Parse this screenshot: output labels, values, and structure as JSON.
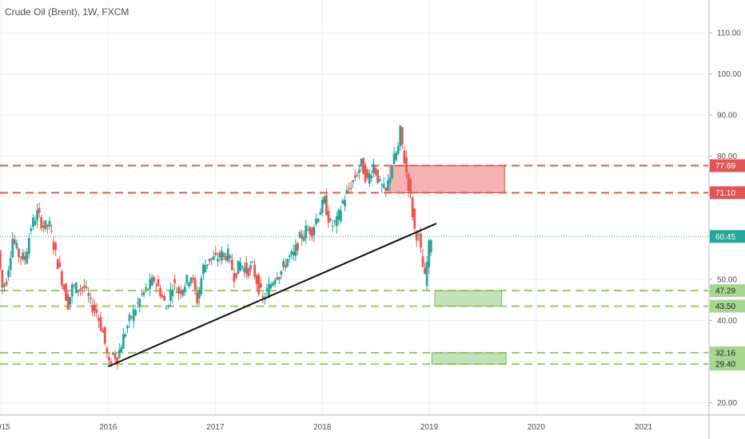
{
  "header": {
    "title": "Crude Oil (Brent), 1W, FXCM"
  },
  "chart_data": {
    "type": "candlestick",
    "instrument": "Crude Oil (Brent)",
    "interval": "1W",
    "source": "FXCM",
    "x_ticks": [
      "2015",
      "2016",
      "2017",
      "2018",
      "2019",
      "2020",
      "2021"
    ],
    "y_ticks": [
      20,
      30,
      40,
      50,
      60,
      70,
      80,
      90,
      100,
      110
    ],
    "y_tick_labels": [
      "20.00",
      "",
      "40.00",
      "50.00",
      "",
      "",
      "80.00",
      "90.00",
      "100.00",
      "110.00"
    ],
    "ylim": [
      17,
      118
    ],
    "xlim": [
      "2014-12-28",
      "2021-08-10"
    ],
    "last_price": {
      "value": 60.45,
      "label": "60.45",
      "color": "#26a69a"
    },
    "resistance_levels": [
      {
        "value": 77.69,
        "label": "77.69",
        "color": "#e05656"
      },
      {
        "value": 71.1,
        "label": "71.10",
        "color": "#e05656"
      }
    ],
    "support_levels": [
      {
        "value": 47.29,
        "label": "47.29",
        "color": "#8bc34a"
      },
      {
        "value": 43.5,
        "label": "43.50",
        "color": "#8bc34a"
      },
      {
        "value": 32.16,
        "label": "32.16",
        "color": "#8bc34a"
      },
      {
        "value": 29.4,
        "label": "29.40",
        "color": "#8bc34a"
      }
    ],
    "zones": [
      {
        "kind": "resistance",
        "from_date": "2018-08-20",
        "to_date": "2019-09-15",
        "low": 71.1,
        "high": 77.69,
        "color": "#f28b8b"
      },
      {
        "kind": "support",
        "from_date": "2019-01-20",
        "to_date": "2019-09-05",
        "low": 43.5,
        "high": 47.29,
        "color": "#b5dba5"
      },
      {
        "kind": "support",
        "from_date": "2019-01-10",
        "to_date": "2019-09-20",
        "low": 29.4,
        "high": 32.16,
        "color": "#b5dba5"
      }
    ],
    "trendline": {
      "from": {
        "date": "2016-01-01",
        "value": 28.8
      },
      "to": {
        "date": "2019-01-25",
        "value": 63.6
      },
      "color": "#111111"
    },
    "price_path": [
      [
        "2014-12-29",
        57
      ],
      [
        "2015-01-12",
        48
      ],
      [
        "2015-01-26",
        50
      ],
      [
        "2015-02-16",
        60
      ],
      [
        "2015-03-09",
        56
      ],
      [
        "2015-03-30",
        55
      ],
      [
        "2015-04-20",
        63
      ],
      [
        "2015-05-11",
        66
      ],
      [
        "2015-06-01",
        63
      ],
      [
        "2015-06-22",
        63
      ],
      [
        "2015-07-13",
        56
      ],
      [
        "2015-08-03",
        50
      ],
      [
        "2015-08-24",
        44
      ],
      [
        "2015-09-07",
        48
      ],
      [
        "2015-09-28",
        48
      ],
      [
        "2015-10-19",
        48
      ],
      [
        "2015-11-09",
        44
      ],
      [
        "2015-11-30",
        42
      ],
      [
        "2015-12-21",
        37
      ],
      [
        "2016-01-11",
        29
      ],
      [
        "2016-01-25",
        32
      ],
      [
        "2016-02-08",
        31
      ],
      [
        "2016-02-29",
        36
      ],
      [
        "2016-03-21",
        40
      ],
      [
        "2016-04-11",
        43
      ],
      [
        "2016-05-02",
        46
      ],
      [
        "2016-05-23",
        48
      ],
      [
        "2016-06-13",
        50
      ],
      [
        "2016-07-04",
        47
      ],
      [
        "2016-07-25",
        43
      ],
      [
        "2016-08-15",
        49
      ],
      [
        "2016-09-05",
        47
      ],
      [
        "2016-09-26",
        49
      ],
      [
        "2016-10-17",
        51
      ],
      [
        "2016-11-07",
        45
      ],
      [
        "2016-11-28",
        53
      ],
      [
        "2016-12-19",
        55
      ],
      [
        "2017-01-09",
        55
      ],
      [
        "2017-01-30",
        56
      ],
      [
        "2017-02-20",
        56
      ],
      [
        "2017-03-13",
        51
      ],
      [
        "2017-04-03",
        54
      ],
      [
        "2017-04-24",
        52
      ],
      [
        "2017-05-15",
        53
      ],
      [
        "2017-06-05",
        48
      ],
      [
        "2017-06-19",
        45
      ],
      [
        "2017-07-10",
        48
      ],
      [
        "2017-07-31",
        51
      ],
      [
        "2017-08-21",
        52
      ],
      [
        "2017-09-11",
        55
      ],
      [
        "2017-10-02",
        56
      ],
      [
        "2017-10-23",
        60
      ],
      [
        "2017-11-13",
        62
      ],
      [
        "2017-12-04",
        62
      ],
      [
        "2017-12-25",
        66
      ],
      [
        "2018-01-15",
        69
      ],
      [
        "2018-02-05",
        63
      ],
      [
        "2018-02-26",
        64
      ],
      [
        "2018-03-19",
        69
      ],
      [
        "2018-04-09",
        72
      ],
      [
        "2018-04-30",
        75
      ],
      [
        "2018-05-21",
        78
      ],
      [
        "2018-06-11",
        74
      ],
      [
        "2018-07-02",
        78
      ],
      [
        "2018-07-23",
        73
      ],
      [
        "2018-08-13",
        71
      ],
      [
        "2018-09-03",
        78
      ],
      [
        "2018-09-24",
        82
      ],
      [
        "2018-10-01",
        86
      ],
      [
        "2018-10-15",
        79
      ],
      [
        "2018-11-05",
        70
      ],
      [
        "2018-11-19",
        62
      ],
      [
        "2018-12-03",
        60
      ],
      [
        "2018-12-17",
        53
      ],
      [
        "2018-12-24",
        50
      ],
      [
        "2019-01-07",
        58
      ],
      [
        "2019-01-14",
        60.45
      ]
    ]
  }
}
